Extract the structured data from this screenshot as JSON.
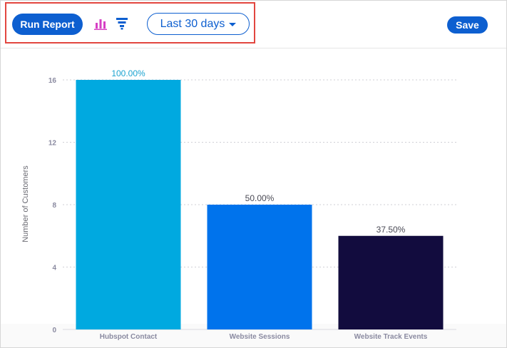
{
  "toolbar": {
    "run_label": "Run Report",
    "chart_icon": "bar-chart-icon",
    "funnel_icon": "funnel-icon",
    "range_label": "Last 30 days",
    "save_label": "Save"
  },
  "colors": {
    "accent": "#0d5fd0",
    "highlight": "#e2463f",
    "chart_icon": "#d63fc4"
  },
  "chart_data": {
    "type": "bar",
    "categories": [
      "Hubspot Contact",
      "Website Sessions",
      "Website Track Events"
    ],
    "values": [
      16,
      8,
      6
    ],
    "data_labels": [
      "100.00%",
      "50.00%",
      "37.50%"
    ],
    "colors": [
      "#00a9e0",
      "#0073ec",
      "#120c3e"
    ],
    "title": "",
    "xlabel": "",
    "ylabel": "Number of Customers",
    "ylim": [
      0,
      16
    ],
    "yticks": [
      0,
      4,
      8,
      12,
      16
    ],
    "grid": true
  }
}
